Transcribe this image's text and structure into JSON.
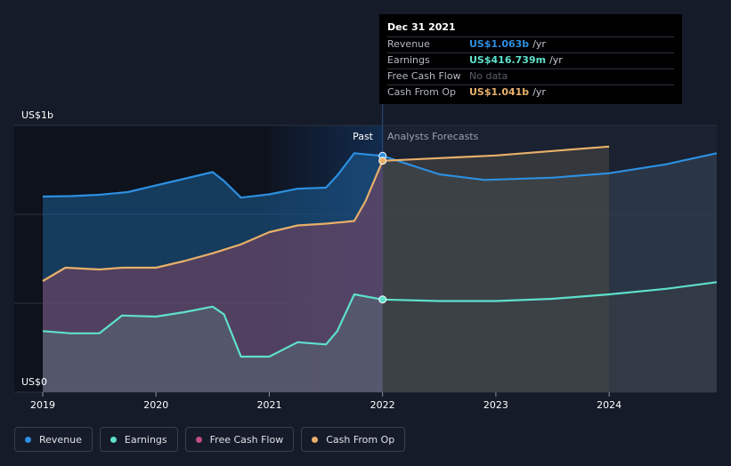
{
  "chart_data": {
    "type": "area",
    "title": "",
    "y_unit_top_label": "US$1b",
    "y_unit_bottom_label": "US$0",
    "ylim": [
      0,
      1.2
    ],
    "xlim": [
      2019,
      2024.95
    ],
    "x_tick_labels": [
      "2019",
      "2020",
      "2021",
      "2022",
      "2023",
      "2024"
    ],
    "x_ticks": [
      2019,
      2020,
      2021,
      2022,
      2023,
      2024
    ],
    "past_label": "Past",
    "forecast_label": "Analysts Forecasts",
    "divider_x": 2022,
    "series": [
      {
        "name": "Revenue",
        "color": "#2d8fe0",
        "past": [
          [
            2019.0,
            0.88
          ],
          [
            2019.25,
            0.882
          ],
          [
            2019.5,
            0.888
          ],
          [
            2019.75,
            0.9
          ],
          [
            2020.0,
            0.93
          ],
          [
            2020.25,
            0.96
          ],
          [
            2020.5,
            0.99
          ],
          [
            2020.6,
            0.95
          ],
          [
            2020.75,
            0.875
          ],
          [
            2021.0,
            0.89
          ],
          [
            2021.25,
            0.915
          ],
          [
            2021.5,
            0.92
          ],
          [
            2021.6,
            0.975
          ],
          [
            2021.75,
            1.075
          ],
          [
            2022.0,
            1.063
          ]
        ],
        "forecast": [
          [
            2022.0,
            1.063
          ],
          [
            2022.5,
            0.98
          ],
          [
            2022.9,
            0.955
          ],
          [
            2023.5,
            0.965
          ],
          [
            2024.0,
            0.985
          ],
          [
            2024.5,
            1.025
          ],
          [
            2024.95,
            1.075
          ]
        ]
      },
      {
        "name": "Earnings",
        "color": "#5ee0cc",
        "past": [
          [
            2019.0,
            0.275
          ],
          [
            2019.25,
            0.265
          ],
          [
            2019.5,
            0.265
          ],
          [
            2019.7,
            0.345
          ],
          [
            2020.0,
            0.34
          ],
          [
            2020.25,
            0.36
          ],
          [
            2020.5,
            0.385
          ],
          [
            2020.6,
            0.35
          ],
          [
            2020.75,
            0.16
          ],
          [
            2021.0,
            0.16
          ],
          [
            2021.25,
            0.225
          ],
          [
            2021.5,
            0.215
          ],
          [
            2021.6,
            0.275
          ],
          [
            2021.75,
            0.44
          ],
          [
            2022.0,
            0.417
          ]
        ],
        "forecast": [
          [
            2022.0,
            0.417
          ],
          [
            2022.5,
            0.41
          ],
          [
            2023.0,
            0.41
          ],
          [
            2023.5,
            0.42
          ],
          [
            2024.0,
            0.44
          ],
          [
            2024.5,
            0.465
          ],
          [
            2024.95,
            0.495
          ]
        ]
      },
      {
        "name": "Free Cash Flow",
        "color": "#c44d86",
        "past": [],
        "forecast": []
      },
      {
        "name": "Cash From Op",
        "color": "#e8b06a",
        "past": [
          [
            2019.0,
            0.5
          ],
          [
            2019.2,
            0.56
          ],
          [
            2019.5,
            0.552
          ],
          [
            2019.7,
            0.56
          ],
          [
            2020.0,
            0.56
          ],
          [
            2020.25,
            0.59
          ],
          [
            2020.5,
            0.625
          ],
          [
            2020.75,
            0.665
          ],
          [
            2021.0,
            0.72
          ],
          [
            2021.25,
            0.75
          ],
          [
            2021.5,
            0.758
          ],
          [
            2021.75,
            0.77
          ],
          [
            2021.85,
            0.86
          ],
          [
            2022.0,
            1.041
          ]
        ],
        "forecast": [
          [
            2022.0,
            1.041
          ],
          [
            2022.5,
            1.053
          ],
          [
            2023.0,
            1.065
          ],
          [
            2023.5,
            1.085
          ],
          [
            2024.0,
            1.105
          ]
        ]
      }
    ],
    "tooltip": {
      "date": "Dec 31 2021",
      "rows": [
        {
          "label": "Revenue",
          "value": "US$1.063b",
          "unit": "/yr",
          "color": "#2d8fe0"
        },
        {
          "label": "Earnings",
          "value": "US$416.739m",
          "unit": "/yr",
          "color": "#5ee0cc"
        },
        {
          "label": "Free Cash Flow",
          "value": "No data",
          "unit": "",
          "color": "#5a5f6b"
        },
        {
          "label": "Cash From Op",
          "value": "US$1.041b",
          "unit": "/yr",
          "color": "#e8b06a"
        }
      ]
    }
  },
  "legend": {
    "items": [
      {
        "label": "Revenue",
        "color": "#2d8fe0"
      },
      {
        "label": "Earnings",
        "color": "#5ee0cc"
      },
      {
        "label": "Free Cash Flow",
        "color": "#c44d86"
      },
      {
        "label": "Cash From Op",
        "color": "#e8b06a"
      }
    ]
  }
}
